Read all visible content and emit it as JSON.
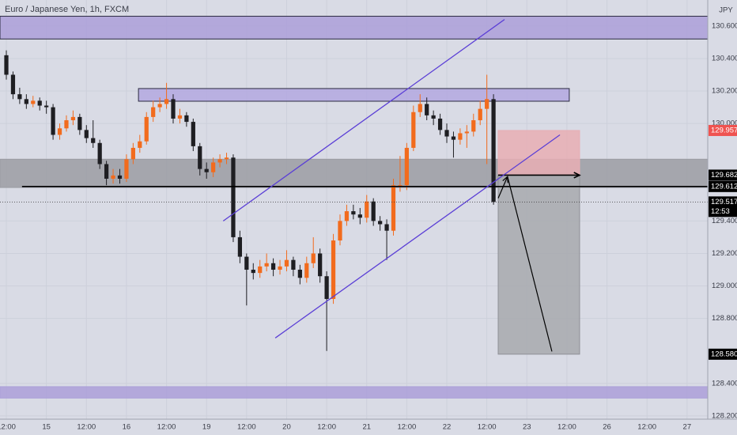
{
  "chart_data": {
    "type": "candlestick",
    "title": "Euro / Japanese Yen, 1h, FXCM",
    "currency": "JPY",
    "up_color": "#f26b1d",
    "down_color": "#1e1e22",
    "grid": true,
    "xlim": [
      -1.9,
      210.2
    ],
    "ylim": [
      130.76,
      128.18
    ],
    "xticks": [
      {
        "value": 0,
        "label": "12:00"
      },
      {
        "value": 12,
        "label": "15"
      },
      {
        "value": 24,
        "label": "12:00"
      },
      {
        "value": 36,
        "label": "16"
      },
      {
        "value": 48,
        "label": "12:00"
      },
      {
        "value": 60,
        "label": "19"
      },
      {
        "value": 72,
        "label": "12:00"
      },
      {
        "value": 84,
        "label": "20"
      },
      {
        "value": 96,
        "label": "12:00"
      },
      {
        "value": 108,
        "label": "21"
      },
      {
        "value": 120,
        "label": "12:00"
      },
      {
        "value": 132,
        "label": "22"
      },
      {
        "value": 144,
        "label": "12:00"
      },
      {
        "value": 156,
        "label": "23"
      },
      {
        "value": 168,
        "label": "12:00"
      },
      {
        "value": 180,
        "label": "26"
      },
      {
        "value": 192,
        "label": "12:00"
      },
      {
        "value": 204,
        "label": "27"
      }
    ],
    "yticks": [
      {
        "value": 130.6,
        "label": "130.600"
      },
      {
        "value": 130.4,
        "label": "130.400"
      },
      {
        "value": 130.2,
        "label": "130.200"
      },
      {
        "value": 130.0,
        "label": "130.000"
      },
      {
        "value": 129.4,
        "label": "129.400"
      },
      {
        "value": 129.2,
        "label": "129.200"
      },
      {
        "value": 129.0,
        "label": "129.000"
      },
      {
        "value": 128.8,
        "label": "128.800"
      },
      {
        "value": 128.4,
        "label": "128.400"
      },
      {
        "value": 128.2,
        "label": "128.200"
      }
    ],
    "x": [
      0,
      2,
      4,
      6,
      8,
      10,
      12,
      14,
      16,
      18,
      20,
      22,
      24,
      26,
      28,
      30,
      32,
      34,
      36,
      38,
      40,
      42,
      44,
      46,
      48,
      50,
      52,
      54,
      56,
      58,
      60,
      62,
      64,
      66,
      68,
      70,
      72,
      74,
      76,
      78,
      80,
      82,
      84,
      86,
      88,
      90,
      92,
      94,
      96,
      98,
      100,
      102,
      104,
      106,
      108,
      110,
      112,
      114,
      116,
      118,
      120,
      122,
      124,
      126,
      128,
      130,
      132,
      134,
      136,
      138,
      140,
      142,
      144,
      146
    ],
    "open": [
      130.42,
      130.3,
      130.18,
      130.15,
      130.12,
      130.14,
      130.11,
      130.1,
      129.93,
      129.97,
      130.02,
      130.04,
      129.96,
      129.91,
      129.88,
      129.75,
      129.66,
      129.68,
      129.66,
      129.78,
      129.85,
      129.89,
      130.04,
      130.1,
      130.12,
      130.15,
      130.03,
      130.05,
      130.01,
      129.86,
      129.72,
      129.7,
      129.76,
      129.78,
      129.79,
      129.3,
      129.18,
      129.1,
      129.08,
      129.12,
      129.14,
      129.1,
      129.12,
      129.16,
      129.1,
      129.05,
      129.14,
      129.2,
      129.06,
      128.92,
      129.28,
      129.4,
      129.46,
      129.44,
      129.42,
      129.52,
      129.4,
      129.38,
      129.34,
      129.62,
      129.62,
      129.85,
      130.07,
      130.12,
      130.05,
      130.03,
      129.96,
      129.92,
      129.9,
      129.94,
      129.95,
      130.02,
      130.09,
      130.15
    ],
    "high": [
      130.45,
      130.32,
      130.22,
      130.18,
      130.17,
      130.16,
      130.14,
      130.12,
      130.0,
      130.05,
      130.08,
      130.06,
      129.99,
      130.02,
      129.9,
      129.77,
      129.72,
      129.72,
      129.81,
      129.88,
      129.93,
      130.07,
      130.14,
      130.16,
      130.25,
      130.18,
      130.09,
      130.07,
      130.03,
      129.88,
      129.76,
      129.79,
      129.81,
      129.82,
      129.81,
      129.34,
      129.2,
      129.14,
      129.16,
      129.2,
      129.17,
      129.16,
      129.22,
      129.18,
      129.13,
      129.18,
      129.3,
      129.23,
      129.09,
      129.32,
      129.44,
      129.5,
      129.5,
      129.48,
      129.56,
      129.54,
      129.43,
      129.41,
      129.66,
      129.8,
      129.88,
      130.11,
      130.18,
      130.16,
      130.08,
      130.06,
      130.0,
      129.95,
      129.97,
      129.99,
      130.06,
      130.14,
      130.3,
      130.18
    ],
    "low": [
      130.27,
      130.15,
      130.12,
      130.09,
      130.1,
      130.08,
      130.06,
      129.9,
      129.9,
      129.95,
      129.99,
      129.93,
      129.88,
      129.85,
      129.72,
      129.62,
      129.63,
      129.63,
      129.64,
      129.75,
      129.82,
      129.87,
      130.01,
      130.07,
      130.09,
      130.0,
      130.0,
      129.98,
      129.83,
      129.68,
      129.66,
      129.67,
      129.73,
      129.75,
      129.27,
      129.14,
      128.88,
      129.04,
      129.05,
      129.09,
      129.06,
      129.07,
      129.09,
      129.06,
      129.01,
      129.02,
      129.11,
      129.02,
      128.6,
      128.89,
      129.25,
      129.37,
      129.41,
      129.38,
      129.39,
      129.37,
      129.34,
      129.16,
      129.31,
      129.58,
      129.59,
      129.83,
      130.04,
      130.02,
      129.99,
      129.93,
      129.88,
      129.79,
      129.87,
      129.85,
      129.92,
      129.99,
      129.75,
      129.5
    ],
    "close": [
      130.3,
      130.18,
      130.15,
      130.12,
      130.14,
      130.11,
      130.1,
      129.93,
      129.97,
      130.02,
      130.04,
      129.96,
      129.91,
      129.88,
      129.75,
      129.66,
      129.68,
      129.66,
      129.78,
      129.85,
      129.89,
      130.04,
      130.1,
      130.12,
      130.15,
      130.03,
      130.05,
      130.01,
      129.86,
      129.72,
      129.7,
      129.76,
      129.78,
      129.79,
      129.3,
      129.18,
      129.1,
      129.08,
      129.12,
      129.14,
      129.1,
      129.12,
      129.16,
      129.1,
      129.05,
      129.14,
      129.2,
      129.06,
      128.92,
      129.28,
      129.4,
      129.46,
      129.44,
      129.42,
      129.52,
      129.4,
      129.38,
      129.34,
      129.62,
      129.62,
      129.85,
      130.07,
      130.12,
      130.05,
      130.03,
      129.96,
      129.92,
      129.9,
      129.94,
      129.95,
      130.02,
      130.09,
      130.15,
      129.517
    ],
    "bands": [
      {
        "from": 130.66,
        "to": 130.52,
        "fill": "#ab9fd9",
        "stroke": "#2a2a40"
      },
      {
        "from": 129.78,
        "to": 129.606,
        "fill": "#9b9ca3",
        "stroke": "#9b9ca3"
      },
      {
        "from": 128.38,
        "to": 128.31,
        "fill": "#ab9fd9",
        "stroke": "#ab9fd9"
      }
    ],
    "boxes": [
      {
        "x1": 39.6,
        "x2": 168.7,
        "from": 130.215,
        "to": 130.137,
        "fill": "#b3a8e0",
        "stroke": "#2a2a40"
      },
      {
        "x1": 147.4,
        "x2": 171.8,
        "from": 129.957,
        "to": 129.682,
        "fill": "#e8aeb4",
        "stroke": "#e8aeb4"
      },
      {
        "x1": 147.4,
        "x2": 171.8,
        "from": 129.682,
        "to": 128.58,
        "fill": "#a7a9ae",
        "stroke": "#8f9096"
      }
    ],
    "lines": [
      {
        "x": [
          4.7,
          210.2
        ],
        "y": [
          129.612,
          129.612
        ],
        "color": "#000000",
        "width": 1.6
      },
      {
        "x": [
          147.4,
          171.8
        ],
        "y": [
          129.682,
          129.682
        ],
        "color": "#000000",
        "width": 1.6
      },
      {
        "x": [
          65.0,
          149.3
        ],
        "y": [
          129.4,
          130.64
        ],
        "color": "#5b3fd6",
        "width": 1.3
      },
      {
        "x": [
          80.6,
          165.9
        ],
        "y": [
          128.68,
          129.93
        ],
        "color": "#5b3fd6",
        "width": 1.3
      },
      {
        "x": [
          147.4,
          150.2
        ],
        "y": [
          129.54,
          129.673
        ],
        "color": "#000000",
        "width": 1.2
      },
      {
        "x": [
          150.2,
          163.5
        ],
        "y": [
          129.673,
          128.597
        ],
        "color": "#000000",
        "width": 1.2
      }
    ],
    "arrow_heads": [
      1,
      4
    ],
    "price_tags": [
      {
        "value": 129.957,
        "label": "129.957",
        "bg": "#ef5350"
      },
      {
        "value": 129.682,
        "label": "129.682",
        "bg": "#000000"
      },
      {
        "value": 129.612,
        "label": "129.612",
        "bg": "#000000"
      },
      {
        "value": 129.517,
        "label": "129.517",
        "bg": "#000000"
      },
      {
        "value": 128.58,
        "label": "128.580",
        "bg": "#000000"
      }
    ],
    "countdown": "12:53",
    "countdown_tag": 3
  }
}
